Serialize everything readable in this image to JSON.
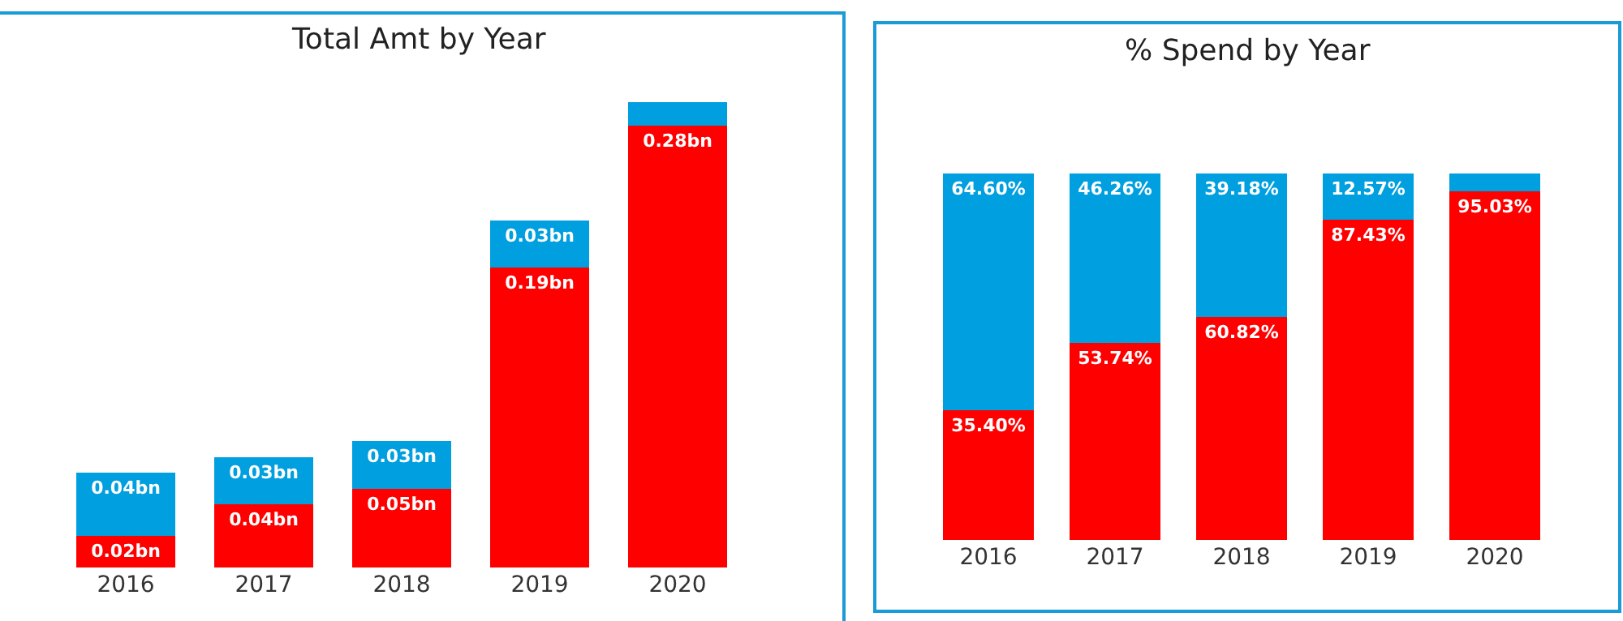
{
  "chart_data": [
    {
      "type": "bar",
      "title": "Total Amt by Year",
      "stacked": true,
      "tick_labels": "x",
      "categories": [
        "2016",
        "2017",
        "2018",
        "2019",
        "2020"
      ],
      "series": [
        {
          "color": "#ff0000",
          "values": [
            0.02,
            0.04,
            0.05,
            0.19,
            0.28
          ],
          "value_labels": [
            "0.02bn",
            "0.04bn",
            "0.05bn",
            "0.19bn",
            "0.28bn"
          ]
        },
        {
          "color": "#009fdf",
          "values": [
            0.04,
            0.03,
            0.03,
            0.03,
            0.015
          ],
          "value_labels": [
            "0.04bn",
            "0.03bn",
            "0.03bn",
            "0.03bn",
            null
          ]
        }
      ]
    },
    {
      "type": "bar",
      "title": "% Spend by Year",
      "stacked": true,
      "tick_labels": "x",
      "categories": [
        "2016",
        "2017",
        "2018",
        "2019",
        "2020"
      ],
      "series": [
        {
          "color": "#ff0000",
          "values": [
            35.4,
            53.74,
            60.82,
            87.43,
            95.03
          ],
          "value_labels": [
            "35.40%",
            "53.74%",
            "60.82%",
            "87.43%",
            "95.03%"
          ]
        },
        {
          "color": "#009fdf",
          "values": [
            64.6,
            46.26,
            39.18,
            12.57,
            4.97
          ],
          "value_labels": [
            "64.60%",
            "46.26%",
            "39.18%",
            "12.57%",
            null
          ]
        }
      ]
    }
  ]
}
